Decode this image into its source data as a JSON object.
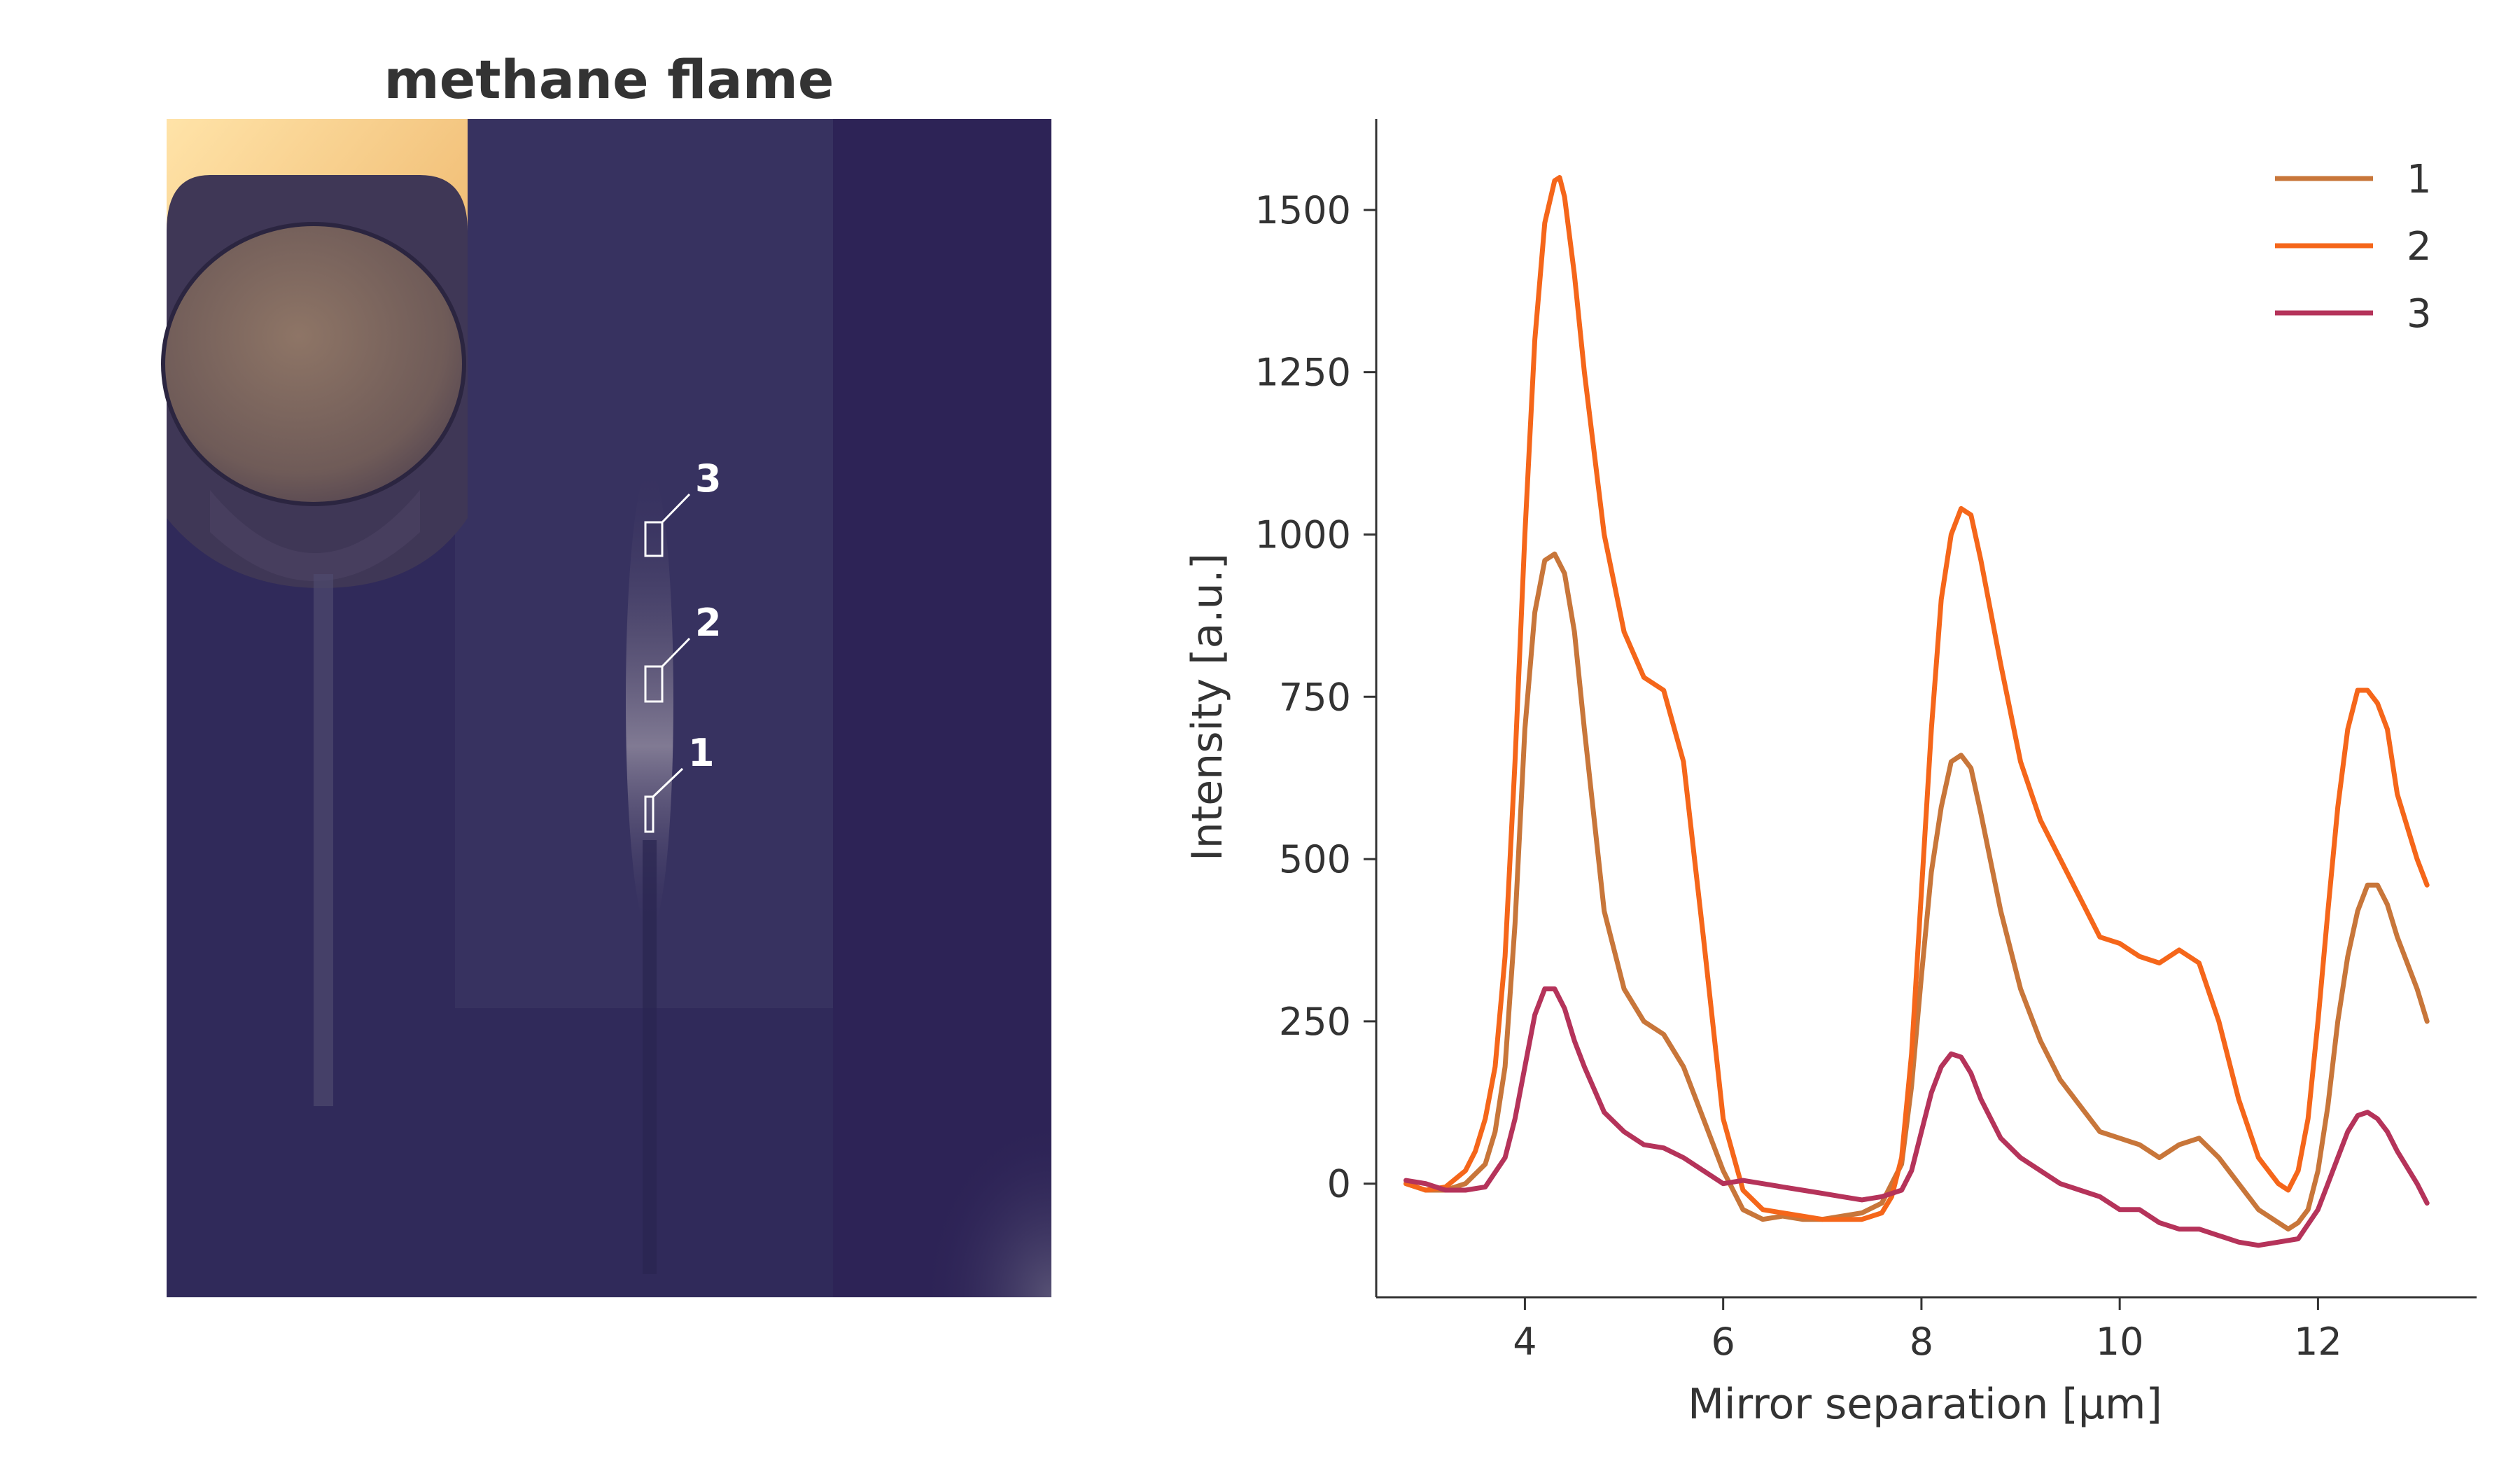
{
  "left_panel": {
    "title": "methane flame",
    "markers": [
      {
        "label": "3"
      },
      {
        "label": "2"
      },
      {
        "label": "1"
      }
    ]
  },
  "chart_data": {
    "type": "line",
    "xlabel": "Mirror separation [µm]",
    "ylabel": "Intensity [a.u.]",
    "xlim": [
      2.5,
      13.6
    ],
    "ylim": [
      -175,
      1640
    ],
    "xticks": [
      4,
      6,
      8,
      10,
      12
    ],
    "yticks": [
      0,
      250,
      500,
      750,
      1000,
      1250,
      1500
    ],
    "grid": false,
    "legend_position": "top-right",
    "colors": {
      "1": "#c8763a",
      "2": "#f5661a",
      "3": "#b5335a"
    },
    "series": [
      {
        "name": "1",
        "x": [
          2.8,
          3.0,
          3.2,
          3.4,
          3.6,
          3.7,
          3.8,
          3.9,
          4.0,
          4.1,
          4.2,
          4.3,
          4.4,
          4.5,
          4.6,
          4.8,
          5.0,
          5.2,
          5.4,
          5.6,
          5.8,
          6.0,
          6.2,
          6.4,
          6.6,
          6.8,
          7.0,
          7.2,
          7.4,
          7.6,
          7.8,
          7.9,
          8.0,
          8.1,
          8.2,
          8.3,
          8.4,
          8.5,
          8.6,
          8.8,
          9.0,
          9.2,
          9.4,
          9.6,
          9.8,
          10.0,
          10.2,
          10.4,
          10.6,
          10.8,
          11.0,
          11.2,
          11.4,
          11.6,
          11.7,
          11.8,
          11.9,
          12.0,
          12.1,
          12.2,
          12.3,
          12.4,
          12.5,
          12.6,
          12.7,
          12.8,
          13.0,
          13.1
        ],
        "y": [
          0,
          -10,
          -10,
          0,
          30,
          80,
          180,
          400,
          700,
          880,
          960,
          970,
          940,
          850,
          700,
          420,
          300,
          250,
          230,
          180,
          100,
          20,
          -40,
          -55,
          -50,
          -55,
          -55,
          -50,
          -45,
          -30,
          30,
          150,
          320,
          480,
          580,
          650,
          660,
          640,
          570,
          420,
          300,
          220,
          160,
          120,
          80,
          70,
          60,
          40,
          60,
          70,
          40,
          0,
          -40,
          -60,
          -70,
          -60,
          -40,
          20,
          120,
          250,
          350,
          420,
          460,
          460,
          430,
          380,
          300,
          250
        ]
      },
      {
        "name": "2",
        "x": [
          2.8,
          3.0,
          3.2,
          3.4,
          3.5,
          3.6,
          3.7,
          3.8,
          3.9,
          4.0,
          4.1,
          4.2,
          4.3,
          4.35,
          4.4,
          4.5,
          4.6,
          4.8,
          5.0,
          5.2,
          5.4,
          5.6,
          5.8,
          6.0,
          6.2,
          6.4,
          6.6,
          6.8,
          7.0,
          7.2,
          7.4,
          7.6,
          7.7,
          7.8,
          7.9,
          8.0,
          8.1,
          8.2,
          8.3,
          8.4,
          8.5,
          8.6,
          8.8,
          9.0,
          9.2,
          9.4,
          9.6,
          9.8,
          10.0,
          10.2,
          10.4,
          10.6,
          10.8,
          11.0,
          11.2,
          11.4,
          11.6,
          11.7,
          11.8,
          11.9,
          12.0,
          12.1,
          12.2,
          12.3,
          12.4,
          12.5,
          12.6,
          12.7,
          12.8,
          13.0,
          13.1
        ],
        "y": [
          0,
          -10,
          -5,
          20,
          50,
          100,
          180,
          350,
          650,
          1000,
          1300,
          1480,
          1545,
          1550,
          1520,
          1400,
          1250,
          1000,
          850,
          780,
          760,
          650,
          380,
          100,
          -10,
          -40,
          -45,
          -50,
          -55,
          -55,
          -55,
          -45,
          -20,
          40,
          200,
          450,
          700,
          900,
          1000,
          1040,
          1030,
          960,
          800,
          650,
          560,
          500,
          440,
          380,
          370,
          350,
          340,
          360,
          340,
          250,
          130,
          40,
          0,
          -10,
          20,
          100,
          250,
          420,
          580,
          700,
          760,
          760,
          740,
          700,
          600,
          500,
          460
        ]
      },
      {
        "name": "3",
        "x": [
          2.8,
          3.0,
          3.2,
          3.4,
          3.6,
          3.8,
          3.9,
          4.0,
          4.1,
          4.2,
          4.3,
          4.4,
          4.5,
          4.6,
          4.8,
          5.0,
          5.2,
          5.4,
          5.6,
          5.8,
          6.0,
          6.2,
          6.4,
          6.6,
          6.8,
          7.0,
          7.2,
          7.4,
          7.6,
          7.8,
          7.9,
          8.0,
          8.1,
          8.2,
          8.3,
          8.4,
          8.5,
          8.6,
          8.8,
          9.0,
          9.2,
          9.4,
          9.6,
          9.8,
          10.0,
          10.2,
          10.4,
          10.6,
          10.8,
          11.0,
          11.2,
          11.4,
          11.6,
          11.8,
          12.0,
          12.1,
          12.2,
          12.3,
          12.4,
          12.5,
          12.6,
          12.7,
          12.8,
          13.0,
          13.1
        ],
        "y": [
          5,
          0,
          -10,
          -10,
          -5,
          40,
          100,
          180,
          260,
          300,
          300,
          270,
          220,
          180,
          110,
          80,
          60,
          55,
          40,
          20,
          0,
          5,
          0,
          -5,
          -10,
          -15,
          -20,
          -25,
          -20,
          -10,
          20,
          80,
          140,
          180,
          200,
          195,
          170,
          130,
          70,
          40,
          20,
          0,
          -10,
          -20,
          -40,
          -40,
          -60,
          -70,
          -70,
          -80,
          -90,
          -95,
          -90,
          -85,
          -40,
          0,
          40,
          80,
          105,
          110,
          100,
          80,
          50,
          0,
          -30
        ]
      }
    ]
  }
}
